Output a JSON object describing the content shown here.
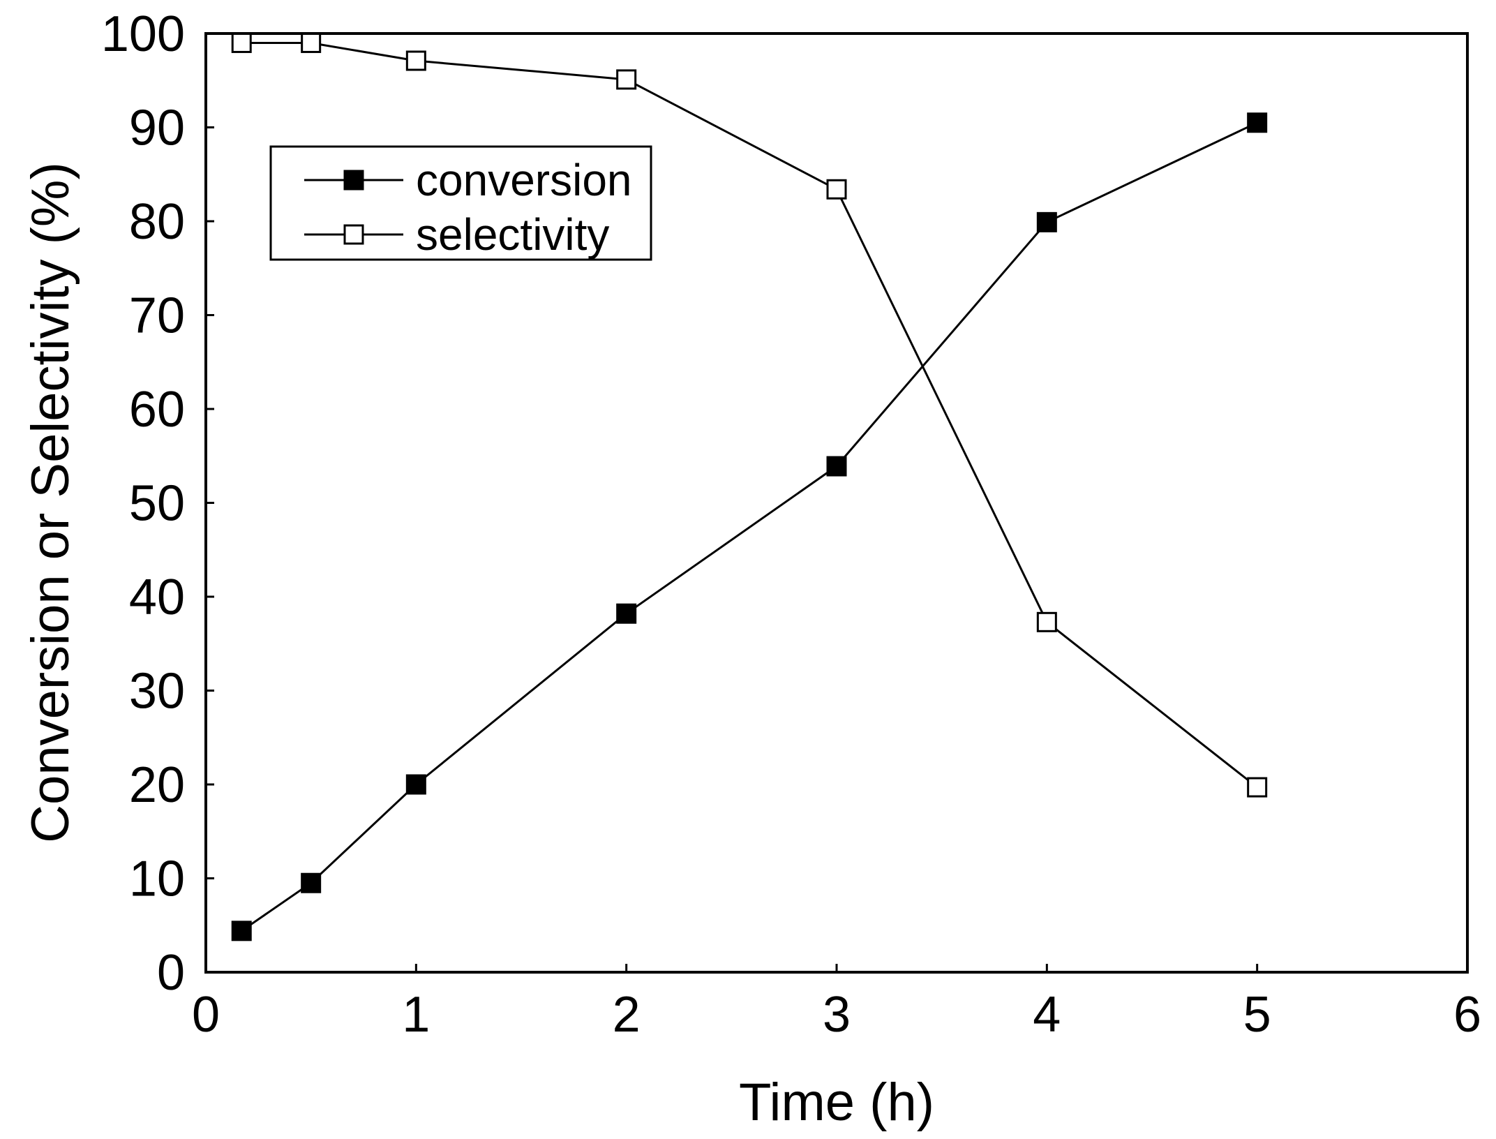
{
  "chart_data": {
    "type": "line",
    "title": "",
    "xlabel": "Time (h)",
    "ylabel": "Conversion or Selectivity (%)",
    "xlim": [
      0,
      6
    ],
    "ylim": [
      0,
      100
    ],
    "x_ticks": [
      "0",
      "1",
      "2",
      "3",
      "4",
      "5",
      "6"
    ],
    "y_ticks": [
      "0",
      "10",
      "20",
      "30",
      "40",
      "50",
      "60",
      "70",
      "80",
      "90",
      "100"
    ],
    "grid": false,
    "legend_position": "top-left",
    "series": [
      {
        "name": "conversion",
        "marker": "filled-square",
        "x": [
          0.17,
          0.5,
          1,
          2,
          3,
          4,
          5
        ],
        "values": [
          4.4,
          9.5,
          20,
          38.2,
          53.9,
          79.9,
          90.5
        ]
      },
      {
        "name": "selectivity",
        "marker": "open-square",
        "x": [
          0.17,
          0.5,
          1,
          2,
          3,
          4,
          5
        ],
        "values": [
          99.0,
          99.0,
          97.1,
          95.1,
          83.4,
          37.3,
          19.7
        ]
      }
    ],
    "colors": {
      "line": "#000000",
      "background": "#ffffff"
    }
  }
}
